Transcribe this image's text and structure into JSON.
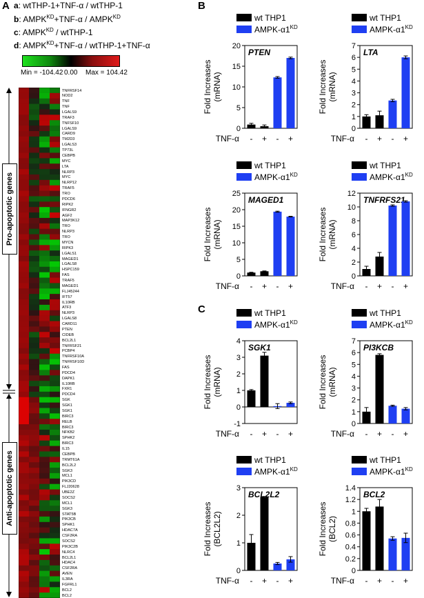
{
  "panel_letters": {
    "a": "A",
    "b": "B",
    "c": "C"
  },
  "heatmap_legend": [
    {
      "letter": "a",
      "text": ": wtTHP-1+TNF-α / wtTHP-1"
    },
    {
      "letter": "b",
      "text": ": AMPK",
      "sup1": "KD",
      "text2": "+TNF-α / AMPK",
      "sup2": "KD"
    },
    {
      "letter": "c",
      "text": ": AMPK",
      "sup1": "KD",
      "text2": " / wtTHP-1"
    },
    {
      "letter": "d",
      "text": ": AMPK",
      "sup1": "KD",
      "text2": "+TNF-α / wtTHP-1+TNF-α"
    }
  ],
  "color_scale": {
    "min_label": "Min = -104.42",
    "mid_label": "0.00",
    "max_label": "Max = 104.42",
    "min_color": "#1ee11e",
    "max_color": "#e01a1a"
  },
  "group_labels": {
    "pro": "Pro-apoptotic genes",
    "anti": "Anti-apoptotic genes"
  },
  "gene_labels": [
    "TNFRSF14",
    "NOD2",
    "TNF",
    "TNF",
    "LGALS9",
    "TRAF3",
    "TNFSF10",
    "LGALS9",
    "CARD9",
    "TM2D3",
    "LGALS3",
    "TP73L",
    "CEBPB",
    "MYC",
    "LTA",
    "NLRP3",
    "MYC",
    "NLRP12",
    "TRAF5",
    "TRO",
    "PDCD6",
    "RIPK2",
    "IFNGR2",
    "AGF2",
    "MAP3K12",
    "TRO",
    "NLRP3",
    "TRO",
    "MYCN",
    "RIPK3",
    "LGALS1",
    "MAGED1",
    "LGALS8",
    "HSPC159",
    "FAS",
    "TRAF5",
    "MAGED1",
    "FLJ45244",
    "IFT57",
    "IL10RB",
    "ATF3",
    "NLRP3",
    "LGALS8",
    "CARD11",
    "PTEN",
    "CIDEB",
    "BCL2L1",
    "TNFRSF21",
    "PCBP4",
    "TNFRSF10A",
    "TNFRSF10D",
    "FAS",
    "PDCD4",
    "DAPK1",
    "IL10RB",
    "FXR1",
    "PDCD4",
    "SGK",
    "SGK1",
    "SGK1",
    "BIRC3",
    "RELB",
    "BIRC3",
    "NFKB2",
    "SPHK2",
    "BIRC3",
    "IL15",
    "CEBPB",
    "TRMT61A",
    "BCL2L2",
    "SGK3",
    "MCL1",
    "PIK3CD",
    "FLJ20628",
    "UBE2Z",
    "SOCS2",
    "MCL1",
    "SGK3",
    "STAT5B",
    "PIK3CB",
    "SPHK1",
    "HDAC7A",
    "CSF2RA",
    "SOCS2",
    "PIK3C2B",
    "NLRC4",
    "BCL2L1",
    "HDAC4",
    "CSF2RA",
    "AVEN",
    "IL3RA",
    "FGFRL1",
    "BCL2",
    "BCL2"
  ],
  "chart_data": [
    {
      "type": "bar",
      "panel": "B",
      "title": "PTEN",
      "ylabel": "Fold Increases (mRNA)",
      "ylim": [
        0,
        20
      ],
      "yticks": [
        0,
        5,
        10,
        15,
        20
      ],
      "xlabel_row": "TNF-α",
      "categories": [
        "-",
        "+",
        "-",
        "+"
      ],
      "series": [
        {
          "name": "wt THP1",
          "color": "#000000"
        },
        {
          "name": "AMPK-α1",
          "sup": "KD",
          "color": "#1f3ff2"
        }
      ],
      "bar_series": [
        0,
        0,
        1,
        1
      ],
      "values": [
        0.9,
        0.5,
        12.3,
        17.0
      ],
      "errors": [
        0.3,
        0.3,
        0.2,
        0.2
      ]
    },
    {
      "type": "bar",
      "panel": "B",
      "title": "LTA",
      "ylabel": "Fold Increases (mRNA)",
      "ylim": [
        0,
        7
      ],
      "yticks": [
        0,
        1,
        2,
        3,
        4,
        5,
        6,
        7
      ],
      "xlabel_row": "TNF-α",
      "categories": [
        "-",
        "+",
        "-",
        "+"
      ],
      "series": [
        {
          "name": "wt THP1",
          "color": "#000000"
        },
        {
          "name": "AMPK-α1",
          "sup": "KD",
          "color": "#1f3ff2"
        }
      ],
      "bar_series": [
        0,
        0,
        1,
        1
      ],
      "values": [
        1.0,
        1.1,
        2.35,
        6.0
      ],
      "errors": [
        0.15,
        0.35,
        0.1,
        0.12
      ]
    },
    {
      "type": "bar",
      "panel": "B",
      "title": "MAGED1",
      "ylabel": "Fold Increases (mRNA)",
      "ylim": [
        0,
        25
      ],
      "yticks": [
        0,
        5,
        10,
        15,
        20,
        25
      ],
      "xlabel_row": "TNF-α",
      "categories": [
        "-",
        "+",
        "-",
        "+"
      ],
      "series": [
        {
          "name": "wt THP1",
          "color": "#000000"
        },
        {
          "name": "AMPK-α1",
          "sup": "KD",
          "color": "#1f3ff2"
        }
      ],
      "bar_series": [
        0,
        0,
        1,
        1
      ],
      "values": [
        1.0,
        1.4,
        19.4,
        17.9
      ],
      "errors": [
        0.1,
        0.1,
        0.15,
        0.1
      ]
    },
    {
      "type": "bar",
      "panel": "B",
      "title": "TNFRFS21",
      "ylabel": "Fold Increases (mRNA)",
      "ylim": [
        0,
        12
      ],
      "yticks": [
        0,
        2,
        4,
        6,
        8,
        10,
        12
      ],
      "xlabel_row": "TNF-α",
      "categories": [
        "-",
        "+",
        "-",
        "+"
      ],
      "series": [
        {
          "name": "wt THP1",
          "color": "#000000"
        },
        {
          "name": "AMPK-α1",
          "sup": "KD",
          "color": "#1f3ff2"
        }
      ],
      "bar_series": [
        0,
        0,
        1,
        1
      ],
      "values": [
        1.0,
        2.8,
        10.2,
        10.8
      ],
      "errors": [
        0.4,
        0.6,
        0.1,
        0.1
      ]
    },
    {
      "type": "bar",
      "panel": "C",
      "title": "SGK1",
      "ylabel": "Fold Increases (mRNA)",
      "ylim": [
        -1,
        4
      ],
      "yticks": [
        -1,
        0,
        1,
        2,
        3,
        4
      ],
      "xlabel_row": "TNF-α",
      "categories": [
        "-",
        "+",
        "-",
        "+"
      ],
      "series": [
        {
          "name": "wt THP1",
          "color": "#000000"
        },
        {
          "name": "AMPK-α1",
          "sup": "KD",
          "color": "#1f3ff2"
        }
      ],
      "bar_series": [
        0,
        0,
        1,
        1
      ],
      "values": [
        1.0,
        3.1,
        0.05,
        0.25
      ],
      "errors": [
        0.05,
        0.2,
        0.15,
        0.05
      ]
    },
    {
      "type": "bar",
      "panel": "C",
      "title": "PI3KCB",
      "ylabel": "Fold Increases (mRNA)",
      "ylim": [
        0,
        7
      ],
      "yticks": [
        0,
        1,
        2,
        3,
        4,
        5,
        6,
        7
      ],
      "xlabel_row": "TNF-α",
      "categories": [
        "-",
        "+",
        "-",
        "+"
      ],
      "series": [
        {
          "name": "wt THP1",
          "color": "#000000"
        },
        {
          "name": "AMPK-α1",
          "sup": "KD",
          "color": "#1f3ff2"
        }
      ],
      "bar_series": [
        0,
        0,
        1,
        1
      ],
      "values": [
        1.0,
        5.8,
        1.5,
        1.25
      ],
      "errors": [
        0.35,
        0.1,
        0.05,
        0.1
      ]
    },
    {
      "type": "bar",
      "panel": "C",
      "title": "BCL2L2",
      "ylabel": "Fold Increases (BCL2L2)",
      "ylim": [
        0,
        3
      ],
      "yticks": [
        0,
        1,
        2,
        3
      ],
      "xlabel_row": "TNF-α",
      "categories": [
        "-",
        "+",
        "-",
        "+"
      ],
      "series": [
        {
          "name": "wt THP1",
          "color": "#000000"
        },
        {
          "name": "AMPK-α1",
          "sup": "KD",
          "color": "#1f3ff2"
        }
      ],
      "bar_series": [
        0,
        0,
        1,
        1
      ],
      "values": [
        1.0,
        2.65,
        0.25,
        0.4
      ],
      "errors": [
        0.3,
        0.03,
        0.04,
        0.1
      ]
    },
    {
      "type": "bar",
      "panel": "C",
      "title": "BCL2",
      "ylabel": "Fold Increases (BCL2)",
      "ylim": [
        0,
        1.4
      ],
      "yticks": [
        0,
        0.2,
        0.4,
        0.6,
        0.8,
        1,
        1.2,
        1.4
      ],
      "xlabel_row": "TNF-α",
      "categories": [
        "-",
        "+",
        "-",
        "+"
      ],
      "series": [
        {
          "name": "wt THP1",
          "color": "#000000"
        },
        {
          "name": "AMPK-α1",
          "sup": "KD",
          "color": "#1f3ff2"
        }
      ],
      "bar_series": [
        0,
        0,
        1,
        1
      ],
      "values": [
        1.0,
        1.08,
        0.54,
        0.55
      ],
      "errors": [
        0.05,
        0.12,
        0.03,
        0.08
      ]
    }
  ]
}
